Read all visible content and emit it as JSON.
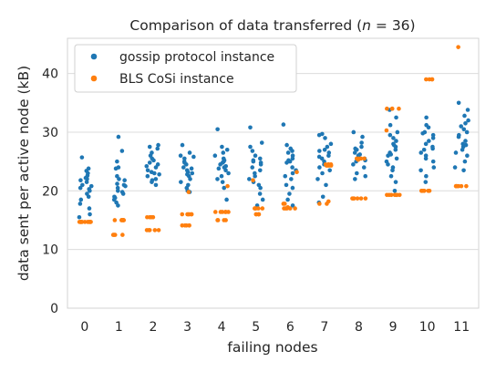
{
  "chart_data": {
    "type": "scatter",
    "title": "Comparison of data transferred (n = 36)",
    "title_prefix": "Comparison of data transferred (",
    "title_var": "n",
    "title_suffix": " = 36)",
    "xlabel": "failing nodes",
    "ylabel": "data sent per active node (kB)",
    "categories": [
      "0",
      "1",
      "2",
      "3",
      "4",
      "5",
      "6",
      "7",
      "8",
      "9",
      "10",
      "11"
    ],
    "ylim": [
      0,
      46
    ],
    "yticks": [
      0,
      10,
      20,
      30,
      40
    ],
    "grid": true,
    "legend_position": "top-left",
    "series": [
      {
        "name": "gossip protocol instance",
        "color": "#1f77b4",
        "points": [
          [
            21.5,
            25.7,
            23.4,
            20.8,
            22.0,
            19.5,
            17.8,
            16.0,
            22.6,
            20.3,
            23.0,
            21.0,
            19.0,
            20.5,
            22.2,
            18.5,
            21.8,
            23.8,
            20.0,
            17.0,
            15.5
          ],
          [
            29.2,
            26.8,
            25.0,
            23.8,
            22.5,
            21.8,
            21.0,
            20.5,
            20.0,
            19.5,
            19.0,
            18.5,
            18.0,
            21.2,
            22.0,
            20.8,
            24.0,
            19.8,
            18.8,
            17.5
          ],
          [
            27.8,
            27.2,
            26.0,
            25.2,
            24.5,
            24.0,
            23.5,
            23.0,
            22.5,
            22.0,
            21.5,
            21.0,
            24.8,
            23.2,
            26.5,
            25.5,
            22.8,
            21.8,
            24.2,
            27.5
          ],
          [
            27.8,
            26.5,
            26.0,
            25.5,
            25.0,
            24.5,
            24.0,
            23.8,
            23.5,
            23.2,
            23.0,
            22.5,
            22.0,
            21.5,
            21.0,
            20.5,
            20.0,
            19.8,
            24.8,
            22.8,
            25.8
          ],
          [
            30.5,
            27.5,
            27.0,
            26.5,
            26.0,
            25.5,
            25.0,
            24.5,
            24.2,
            24.0,
            23.8,
            23.5,
            23.0,
            22.5,
            22.0,
            21.5,
            20.5,
            18.5,
            24.8,
            25.2
          ],
          [
            30.8,
            28.2,
            27.5,
            26.8,
            26.0,
            25.5,
            25.0,
            24.5,
            24.0,
            23.5,
            23.0,
            22.5,
            22.0,
            21.5,
            21.0,
            20.5,
            19.5,
            18.5,
            17.5,
            24.8,
            25.2
          ],
          [
            31.3,
            27.8,
            27.2,
            26.8,
            26.0,
            25.5,
            25.0,
            24.0,
            23.5,
            23.0,
            22.5,
            22.0,
            21.0,
            20.5,
            19.5,
            18.5,
            17.5,
            26.5,
            25.2,
            24.8
          ],
          [
            29.7,
            29.5,
            29.0,
            28.0,
            27.5,
            27.0,
            26.5,
            26.0,
            25.5,
            25.0,
            24.5,
            24.0,
            23.5,
            23.0,
            22.0,
            21.0,
            19.0,
            18.0,
            26.8,
            25.8
          ],
          [
            30.0,
            29.2,
            28.2,
            27.5,
            27.0,
            26.5,
            26.0,
            25.5,
            25.0,
            24.5,
            24.0,
            23.0,
            22.5,
            22.0,
            27.2,
            26.2,
            25.2
          ],
          [
            33.8,
            32.5,
            31.2,
            30.0,
            29.5,
            29.0,
            28.5,
            28.0,
            27.5,
            27.0,
            26.5,
            26.0,
            25.5,
            25.0,
            24.5,
            24.0,
            23.5,
            22.5,
            21.5,
            20.0,
            27.8,
            26.2
          ],
          [
            32.5,
            31.2,
            30.8,
            30.0,
            29.5,
            29.0,
            28.5,
            28.0,
            27.5,
            27.0,
            26.5,
            26.0,
            25.5,
            25.0,
            24.0,
            23.5,
            22.5,
            21.5,
            29.8,
            27.2
          ],
          [
            35.0,
            33.8,
            32.8,
            32.0,
            31.5,
            31.0,
            30.5,
            30.0,
            29.5,
            28.5,
            28.0,
            27.5,
            27.0,
            26.5,
            26.0,
            25.0,
            24.0,
            23.5,
            29.2,
            27.8
          ]
        ]
      },
      {
        "name": "BLS CoSi instance",
        "color": "#ff7f0e",
        "points": [
          [
            14.7,
            14.7,
            14.7,
            14.7,
            14.7,
            14.7,
            14.7,
            14.7,
            14.7,
            14.7,
            14.7
          ],
          [
            15.0,
            15.0,
            15.0,
            15.0,
            15.0,
            15.0,
            15.0,
            12.5,
            12.5,
            12.5,
            12.5
          ],
          [
            15.5,
            15.5,
            15.5,
            15.5,
            15.5,
            15.5,
            13.3,
            13.3,
            13.3,
            13.3,
            13.3
          ],
          [
            16.0,
            16.0,
            16.0,
            16.0,
            16.0,
            16.0,
            14.1,
            14.1,
            14.1,
            14.1,
            14.1,
            19.8
          ],
          [
            16.4,
            16.4,
            16.4,
            16.4,
            16.4,
            16.4,
            15.0,
            15.0,
            15.0,
            15.0,
            20.8
          ],
          [
            17.0,
            17.0,
            17.0,
            17.0,
            17.0,
            16.0,
            16.0,
            16.0,
            16.0,
            16.0,
            21.8
          ],
          [
            17.0,
            17.0,
            17.0,
            17.0,
            17.0,
            17.2,
            17.8,
            17.8,
            23.2
          ],
          [
            24.5,
            24.5,
            24.5,
            24.5,
            24.3,
            24.3,
            24.3,
            24.3,
            17.8,
            17.8,
            18.2
          ],
          [
            25.5,
            25.5,
            25.5,
            25.5,
            25.3,
            18.7,
            18.7,
            18.7,
            18.7,
            18.7,
            18.7
          ],
          [
            34.0,
            34.0,
            34.0,
            34.0,
            19.3,
            19.3,
            19.3,
            19.3,
            19.3,
            19.3,
            19.3,
            19.3,
            30.3
          ],
          [
            39.0,
            39.0,
            39.0,
            39.0,
            20.0,
            20.0,
            20.0,
            20.0,
            20.0,
            20.0,
            20.0,
            20.0
          ],
          [
            44.5,
            20.8,
            20.8,
            20.8,
            20.8,
            20.8,
            20.8,
            20.8
          ]
        ]
      }
    ]
  }
}
